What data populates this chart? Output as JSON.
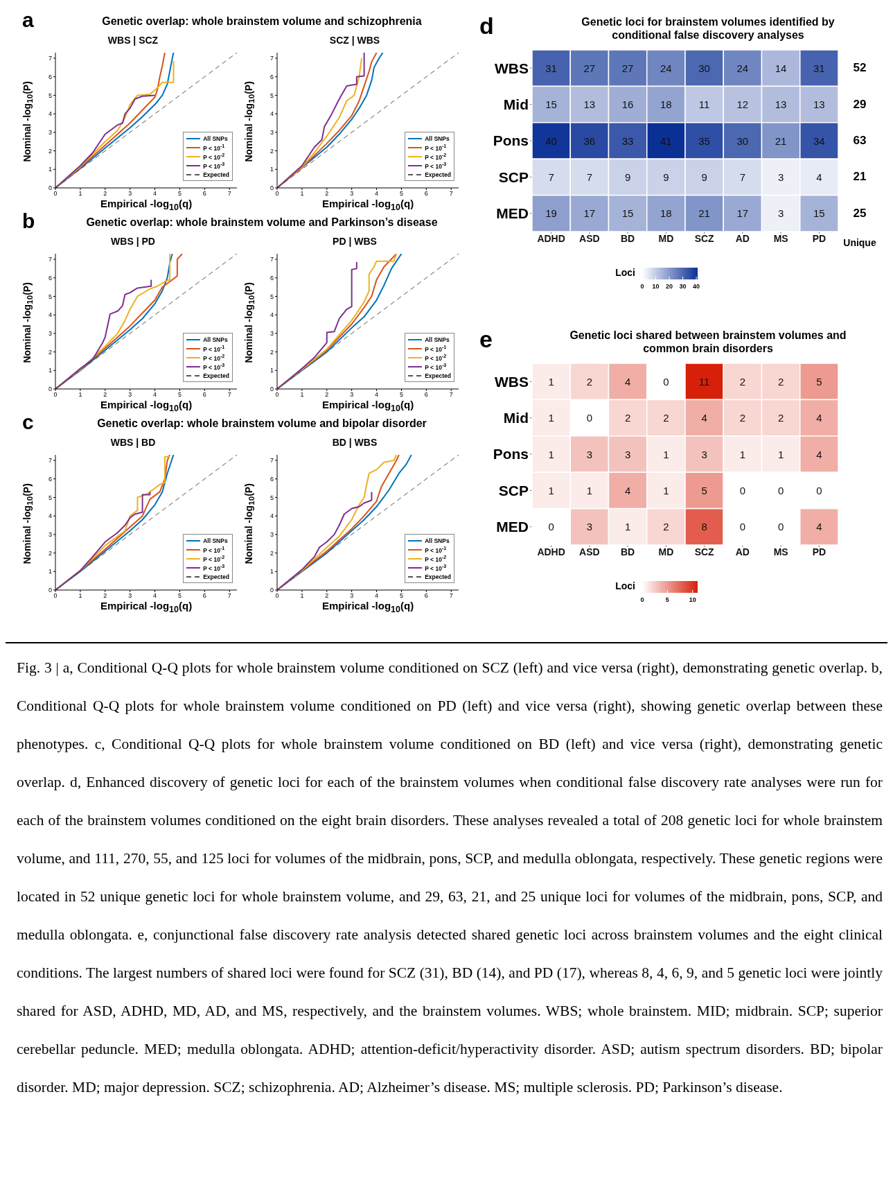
{
  "chart_data": [
    {
      "type": "line",
      "title": "WBS | SCZ",
      "xlabel": "Empirical -log$_{10}$(q)",
      "ylabel": "Nominal -log$_{10}$(P)",
      "annotations": [
        "a",
        "Genetic overlap: whole brainstem volume and schizophrenia"
      ],
      "xlim": [
        0,
        7.3
      ],
      "ylim": [
        0,
        7.3
      ],
      "xticks": [
        0,
        1,
        2,
        3,
        4,
        5,
        6,
        7
      ],
      "yticks": [
        0,
        1,
        2,
        3,
        4,
        5,
        6,
        7
      ],
      "legend": "bottom right",
      "series": [
        {
          "name": "All SNPs",
          "color": "#0072bd",
          "x": [
            0,
            1,
            2,
            3,
            3.5,
            4,
            4.3,
            4.5,
            4.6,
            4.7,
            4.75
          ],
          "values": [
            0,
            1.05,
            2.15,
            3.25,
            3.85,
            4.5,
            5.0,
            5.6,
            6.3,
            7.0,
            7.3
          ]
        },
        {
          "name": "P < 10$^{-1}$",
          "color": "#d95319",
          "x": [
            0,
            1,
            2,
            2.5,
            3,
            3.5,
            4,
            4.1,
            4.2,
            4.3,
            4.4
          ],
          "values": [
            0,
            1.1,
            2.3,
            2.9,
            3.5,
            4.2,
            4.9,
            5.3,
            6.0,
            6.6,
            7.3
          ]
        },
        {
          "name": "P < 10$^{-2}$",
          "color": "#edb120",
          "x": [
            0,
            1,
            2,
            2.5,
            2.8,
            3,
            3.3,
            3.8,
            4.1,
            4.3,
            4.75,
            4.75
          ],
          "values": [
            0,
            1.15,
            2.5,
            3.1,
            3.8,
            4.5,
            5.0,
            5.05,
            5.4,
            5.7,
            5.7,
            6.85
          ]
        },
        {
          "name": "P < 10$^{-3}$",
          "color": "#7e2f8e",
          "x": [
            0,
            1,
            1.5,
            2,
            2.5,
            2.7,
            2.8,
            3,
            3.2,
            3.5,
            4.0
          ],
          "values": [
            0,
            1.2,
            1.9,
            2.9,
            3.4,
            3.5,
            4.0,
            4.3,
            4.8,
            4.95,
            5.0
          ]
        },
        {
          "name": "Expected",
          "color": "#555555",
          "line_style": "dashed",
          "x": [
            0,
            7.3
          ],
          "values": [
            0,
            7.3
          ]
        }
      ]
    },
    {
      "type": "line",
      "title": "SCZ | WBS",
      "xlabel": "Empirical -log$_{10}$(q)",
      "ylabel": "Nominal -log$_{10}$(P)",
      "xlim": [
        0,
        7.3
      ],
      "ylim": [
        0,
        7.3
      ],
      "xticks": [
        0,
        1,
        2,
        3,
        4,
        5,
        6,
        7
      ],
      "yticks": [
        0,
        1,
        2,
        3,
        4,
        5,
        6,
        7
      ],
      "legend": "bottom right",
      "series": [
        {
          "name": "All SNPs",
          "color": "#0072bd",
          "x": [
            0,
            1,
            2,
            2.5,
            3,
            3.3,
            3.6,
            3.8,
            3.9,
            4.1,
            4.25
          ],
          "values": [
            0,
            1.1,
            2.2,
            2.9,
            3.7,
            4.3,
            5.0,
            5.8,
            6.5,
            7.0,
            7.3
          ]
        },
        {
          "name": "P < 10$^{-1}$",
          "color": "#d95319",
          "x": [
            0,
            1,
            2,
            2.5,
            3,
            3.3,
            3.5,
            3.7,
            3.8,
            4.0
          ],
          "values": [
            0,
            1.1,
            2.4,
            3.1,
            3.9,
            4.7,
            5.5,
            6.3,
            6.8,
            7.3
          ]
        },
        {
          "name": "P < 10$^{-2}$",
          "color": "#edb120",
          "x": [
            0,
            1,
            1.5,
            2,
            2.5,
            2.8,
            3.1,
            3.3,
            3.4
          ],
          "values": [
            0,
            1.15,
            1.9,
            2.8,
            3.8,
            4.7,
            5.0,
            6.0,
            7.0
          ]
        },
        {
          "name": "P < 10$^{-3}$",
          "color": "#7e2f8e",
          "x": [
            0,
            1,
            1.5,
            1.8,
            1.9,
            2.2,
            2.5,
            2.8,
            3.2,
            3.2,
            3.5,
            3.5
          ],
          "values": [
            0,
            1.2,
            2.2,
            2.6,
            3.3,
            4.0,
            4.8,
            5.5,
            5.6,
            6.0,
            6.05,
            7.3
          ]
        },
        {
          "name": "Expected",
          "color": "#555555",
          "line_style": "dashed",
          "x": [
            0,
            7.3
          ],
          "values": [
            0,
            7.3
          ]
        }
      ]
    },
    {
      "type": "line",
      "title": "WBS | PD",
      "xlabel": "Empirical -log$_{10}$(q)",
      "ylabel": "Nominal -log$_{10}$(P)",
      "annotations": [
        "b",
        "Genetic overlap: whole brainstem volume and Parkinson’s disease"
      ],
      "xlim": [
        0,
        7.3
      ],
      "ylim": [
        0,
        7.3
      ],
      "xticks": [
        0,
        1,
        2,
        3,
        4,
        5,
        6,
        7
      ],
      "yticks": [
        0,
        1,
        2,
        3,
        4,
        5,
        6,
        7
      ],
      "legend": "bottom right",
      "series": [
        {
          "name": "All SNPs",
          "color": "#0072bd",
          "x": [
            0,
            1,
            2,
            3,
            3.5,
            4,
            4.3,
            4.5,
            4.6,
            4.7
          ],
          "values": [
            0,
            1.0,
            2.1,
            3.2,
            3.8,
            4.6,
            5.3,
            6.0,
            6.8,
            7.3
          ]
        },
        {
          "name": "P < 10$^{-1}$",
          "color": "#d95319",
          "x": [
            0,
            1,
            2,
            3,
            3.5,
            4,
            4.3,
            4.5,
            4.9,
            4.9,
            5.1
          ],
          "values": [
            0,
            1.05,
            2.2,
            3.4,
            4.1,
            4.8,
            5.5,
            5.7,
            6.1,
            7.0,
            7.3
          ]
        },
        {
          "name": "P < 10$^{-2}$",
          "color": "#edb120",
          "x": [
            0,
            1,
            2,
            2.5,
            2.8,
            3,
            3.3,
            3.8,
            4.1,
            4.4,
            4.6,
            4.6
          ],
          "values": [
            0,
            1.05,
            2.3,
            3.0,
            3.7,
            4.3,
            5.0,
            5.4,
            5.55,
            5.8,
            5.9,
            7.3
          ]
        },
        {
          "name": "P < 10$^{-3}$",
          "color": "#7e2f8e",
          "x": [
            0,
            1,
            1.5,
            1.9,
            2,
            2.2,
            2.5,
            2.7,
            2.8,
            3.0,
            3.3,
            3.85,
            3.85
          ],
          "values": [
            0,
            1.1,
            1.6,
            2.5,
            2.8,
            4.05,
            4.2,
            4.5,
            5.1,
            5.2,
            5.45,
            5.55,
            5.9
          ]
        },
        {
          "name": "Expected",
          "color": "#555555",
          "line_style": "dashed",
          "x": [
            0,
            7.3
          ],
          "values": [
            0,
            7.3
          ]
        }
      ]
    },
    {
      "type": "line",
      "title": "PD | WBS",
      "xlabel": "Empirical -log$_{10}$(q)",
      "ylabel": "Nominal -log$_{10}$(P)",
      "xlim": [
        0,
        7.3
      ],
      "ylim": [
        0,
        7.3
      ],
      "xticks": [
        0,
        1,
        2,
        3,
        4,
        5,
        6,
        7
      ],
      "yticks": [
        0,
        1,
        2,
        3,
        4,
        5,
        6,
        7
      ],
      "legend": "bottom right",
      "series": [
        {
          "name": "All SNPs",
          "color": "#0072bd",
          "x": [
            0,
            1,
            2,
            3,
            3.5,
            4,
            4.3,
            4.6,
            5.0
          ],
          "values": [
            0,
            1.0,
            2.0,
            3.3,
            3.9,
            4.8,
            5.6,
            6.5,
            7.3
          ]
        },
        {
          "name": "P < 10$^{-1}$",
          "color": "#d95319",
          "x": [
            0,
            1,
            2,
            3,
            3.5,
            3.8,
            4.0,
            4.3,
            4.8
          ],
          "values": [
            0,
            1.05,
            2.1,
            3.5,
            4.4,
            5.0,
            5.9,
            6.6,
            7.3
          ]
        },
        {
          "name": "P < 10$^{-2}$",
          "color": "#edb120",
          "x": [
            0,
            1,
            2,
            3,
            3.5,
            3.7,
            3.7,
            3.9,
            4.0,
            4.7,
            4.8
          ],
          "values": [
            0,
            1.05,
            2.15,
            3.7,
            4.7,
            5.3,
            6.2,
            6.6,
            6.9,
            6.9,
            7.3
          ]
        },
        {
          "name": "P < 10$^{-3}$",
          "color": "#7e2f8e",
          "x": [
            0,
            1,
            1.5,
            2,
            2.0,
            2.3,
            2.5,
            2.8,
            3.0,
            3.0,
            3.2,
            3.2
          ],
          "values": [
            0,
            1.1,
            1.7,
            2.5,
            3.05,
            3.1,
            3.8,
            4.3,
            4.45,
            6.45,
            6.5,
            6.85
          ]
        },
        {
          "name": "Expected",
          "color": "#555555",
          "line_style": "dashed",
          "x": [
            0,
            7.3
          ],
          "values": [
            0,
            7.3
          ]
        }
      ]
    },
    {
      "type": "line",
      "title": "WBS | BD",
      "xlabel": "Empirical -log$_{10}$(q)",
      "ylabel": "Nominal -log$_{10}$(P)",
      "annotations": [
        "c",
        "Genetic overlap: whole brainstem volume and bipolar disorder"
      ],
      "xlim": [
        0,
        7.3
      ],
      "ylim": [
        0,
        7.3
      ],
      "xticks": [
        0,
        1,
        2,
        3,
        4,
        5,
        6,
        7
      ],
      "yticks": [
        0,
        1,
        2,
        3,
        4,
        5,
        6,
        7
      ],
      "legend": "bottom right",
      "series": [
        {
          "name": "All SNPs",
          "color": "#0072bd",
          "x": [
            0,
            1,
            2,
            3,
            3.5,
            4,
            4.3,
            4.5,
            4.75
          ],
          "values": [
            0,
            1.0,
            2.1,
            3.2,
            3.8,
            4.6,
            5.3,
            6.3,
            7.3
          ]
        },
        {
          "name": "P < 10$^{-1}$",
          "color": "#d95319",
          "x": [
            0,
            1,
            2,
            3,
            3.5,
            3.8,
            4.2,
            4.4,
            4.5,
            4.6
          ],
          "values": [
            0,
            1.05,
            2.2,
            3.4,
            4.0,
            4.9,
            5.3,
            6.0,
            7.0,
            7.3
          ]
        },
        {
          "name": "P < 10$^{-2}$",
          "color": "#edb120",
          "x": [
            0,
            1,
            2,
            2.8,
            3.0,
            3.3,
            3.3,
            3.7,
            4.2,
            4.4,
            4.4,
            4.6
          ],
          "values": [
            0,
            1.05,
            2.4,
            3.2,
            4.0,
            4.3,
            5.0,
            5.2,
            5.7,
            5.8,
            7.2,
            7.2
          ]
        },
        {
          "name": "P < 10$^{-3}$",
          "color": "#7e2f8e",
          "x": [
            0,
            1,
            1.5,
            2,
            2.5,
            2.8,
            3.0,
            3.2,
            3.5,
            3.5,
            3.8,
            3.8
          ],
          "values": [
            0,
            1.05,
            1.8,
            2.6,
            3.1,
            3.5,
            3.9,
            4.1,
            4.2,
            5.15,
            5.15,
            5.3
          ]
        },
        {
          "name": "Expected",
          "color": "#555555",
          "line_style": "dashed",
          "x": [
            0,
            7.3
          ],
          "values": [
            0,
            7.3
          ]
        }
      ]
    },
    {
      "type": "line",
      "title": "BD | WBS",
      "xlabel": "Empirical -log$_{10}$(q)",
      "ylabel": "Nominal -log$_{10}$(P)",
      "xlim": [
        0,
        7.3
      ],
      "ylim": [
        0,
        7.3
      ],
      "xticks": [
        0,
        1,
        2,
        3,
        4,
        5,
        6,
        7
      ],
      "yticks": [
        0,
        1,
        2,
        3,
        4,
        5,
        6,
        7
      ],
      "legend": "bottom right",
      "series": [
        {
          "name": "All SNPs",
          "color": "#0072bd",
          "x": [
            0,
            1,
            2,
            3,
            3.5,
            4,
            4.5,
            4.9,
            5.2,
            5.4
          ],
          "values": [
            0,
            1.0,
            2.0,
            3.2,
            3.8,
            4.5,
            5.4,
            6.3,
            6.8,
            7.3
          ]
        },
        {
          "name": "P < 10$^{-1}$",
          "color": "#d95319",
          "x": [
            0,
            1,
            2,
            3,
            3.5,
            4,
            4.2,
            4.5,
            4.8,
            4.9
          ],
          "values": [
            0,
            1.05,
            2.1,
            3.3,
            4.0,
            4.8,
            5.6,
            6.3,
            7.0,
            7.3
          ]
        },
        {
          "name": "P < 10$^{-2}$",
          "color": "#edb120",
          "x": [
            0,
            1,
            2,
            2.5,
            3,
            3.3,
            3.5,
            3.6,
            3.7,
            4.0,
            4.3,
            4.7,
            4.8
          ],
          "values": [
            0,
            1.05,
            2.3,
            2.9,
            3.8,
            4.6,
            5.0,
            5.7,
            6.3,
            6.5,
            6.9,
            7.0,
            7.3
          ]
        },
        {
          "name": "P < 10$^{-3}$",
          "color": "#7e2f8e",
          "x": [
            0,
            1,
            1.5,
            1.7,
            2,
            2.3,
            2.5,
            2.7,
            3.0,
            3.3,
            3.5,
            3.8,
            3.8
          ],
          "values": [
            0,
            1.1,
            1.8,
            2.3,
            2.6,
            3.0,
            3.5,
            4.1,
            4.4,
            4.5,
            4.7,
            4.85,
            5.3
          ]
        },
        {
          "name": "Expected",
          "color": "#555555",
          "line_style": "dashed",
          "x": [
            0,
            7.3
          ],
          "values": [
            0,
            7.3
          ]
        }
      ]
    },
    {
      "type": "heatmap",
      "title": "Genetic loci for brainstem volumes identified by conditional false discovery analyses",
      "annotations": [
        "d",
        "Unique"
      ],
      "categories": [
        "ADHD",
        "ASD",
        "BD",
        "MD",
        "SCZ",
        "AD",
        "MS",
        "PD"
      ],
      "y_categories": [
        "WBS",
        "Mid",
        "Pons",
        "SCP",
        "MED"
      ],
      "y2_categories": [
        "52",
        "29",
        "63",
        "21",
        "25"
      ],
      "color": "#0b3095",
      "data_labels": true,
      "clabel": "Loci",
      "clim": [
        0,
        41
      ],
      "cticks": [
        0,
        10,
        20,
        30,
        40
      ],
      "cells": [
        [
          31,
          27,
          27,
          24,
          30,
          24,
          14,
          31
        ],
        [
          15,
          13,
          16,
          18,
          11,
          12,
          13,
          13
        ],
        [
          40,
          36,
          33,
          41,
          35,
          30,
          21,
          34
        ],
        [
          7,
          7,
          9,
          9,
          9,
          7,
          3,
          4
        ],
        [
          19,
          17,
          15,
          18,
          21,
          17,
          3,
          15
        ]
      ]
    },
    {
      "type": "heatmap",
      "title": "Genetic loci shared between brainstem volumes and common brain disorders",
      "annotations": [
        "e",
        "Fig. 3 | a, Conditional Q-Q plots for whole brainstem volume conditioned on SCZ (left) and vice versa (right), demonstrating genetic overlap. b, Conditional Q-Q plots for whole brainstem volume conditioned on PD (left) and vice versa (right), showing genetic overlap between these phenotypes. c, Conditional Q-Q plots for whole brainstem volume conditioned on BD (left) and vice versa (right), demonstrating genetic overlap. d, Enhanced discovery of genetic loci for each of the brainstem volumes when conditional false discovery rate analyses were run for each of the brainstem volumes conditioned on the eight brain disorders. These analyses revealed a total of 208 genetic loci for whole brainstem volume, and 111, 270, 55, and 125 loci for volumes of the midbrain, pons, SCP, and medulla oblongata, respectively. These genetic regions were located in 52 unique genetic loci for whole brainstem volume, and 29, 63, 21, and 25 unique loci for volumes of the midbrain, pons, SCP, and medulla oblongata. e, conjunctional false discovery rate analysis detected shared genetic loci across brainstem volumes and the eight clinical conditions. The largest numbers of shared loci were found for SCZ (31), BD (14), and PD (17), whereas 8, 4, 6, 9, and 5 genetic loci were jointly shared for ASD, ADHD, MD, AD, and MS, respectively, and the brainstem volumes. WBS; whole brainstem. MID; midbrain. SCP; superior cerebellar peduncle. MED; medulla oblongata. ADHD; attention-deficit/hyperactivity disorder. ASD; autism spectrum disorders. BD; bipolar disorder. MD; major depression. SCZ; schizophrenia. AD; Alzheimer’s disease. MS; multiple sclerosis. PD; Parkinson’s disease."
      ],
      "categories": [
        "ADHD",
        "ASD",
        "BD",
        "MD",
        "SCZ",
        "AD",
        "MS",
        "PD"
      ],
      "y_categories": [
        "WBS",
        "Mid",
        "Pons",
        "SCP",
        "MED"
      ],
      "color": "#d7200a",
      "data_labels": true,
      "clabel": "Loci",
      "clim": [
        0,
        11
      ],
      "cticks": [
        0,
        5,
        10
      ],
      "cells": [
        [
          1,
          2,
          4,
          0,
          11,
          2,
          2,
          5
        ],
        [
          1,
          0,
          2,
          2,
          4,
          2,
          2,
          4
        ],
        [
          1,
          3,
          3,
          1,
          3,
          1,
          1,
          4
        ],
        [
          1,
          1,
          4,
          1,
          5,
          0,
          0,
          0
        ],
        [
          0,
          3,
          1,
          2,
          8,
          0,
          0,
          4
        ]
      ]
    }
  ]
}
